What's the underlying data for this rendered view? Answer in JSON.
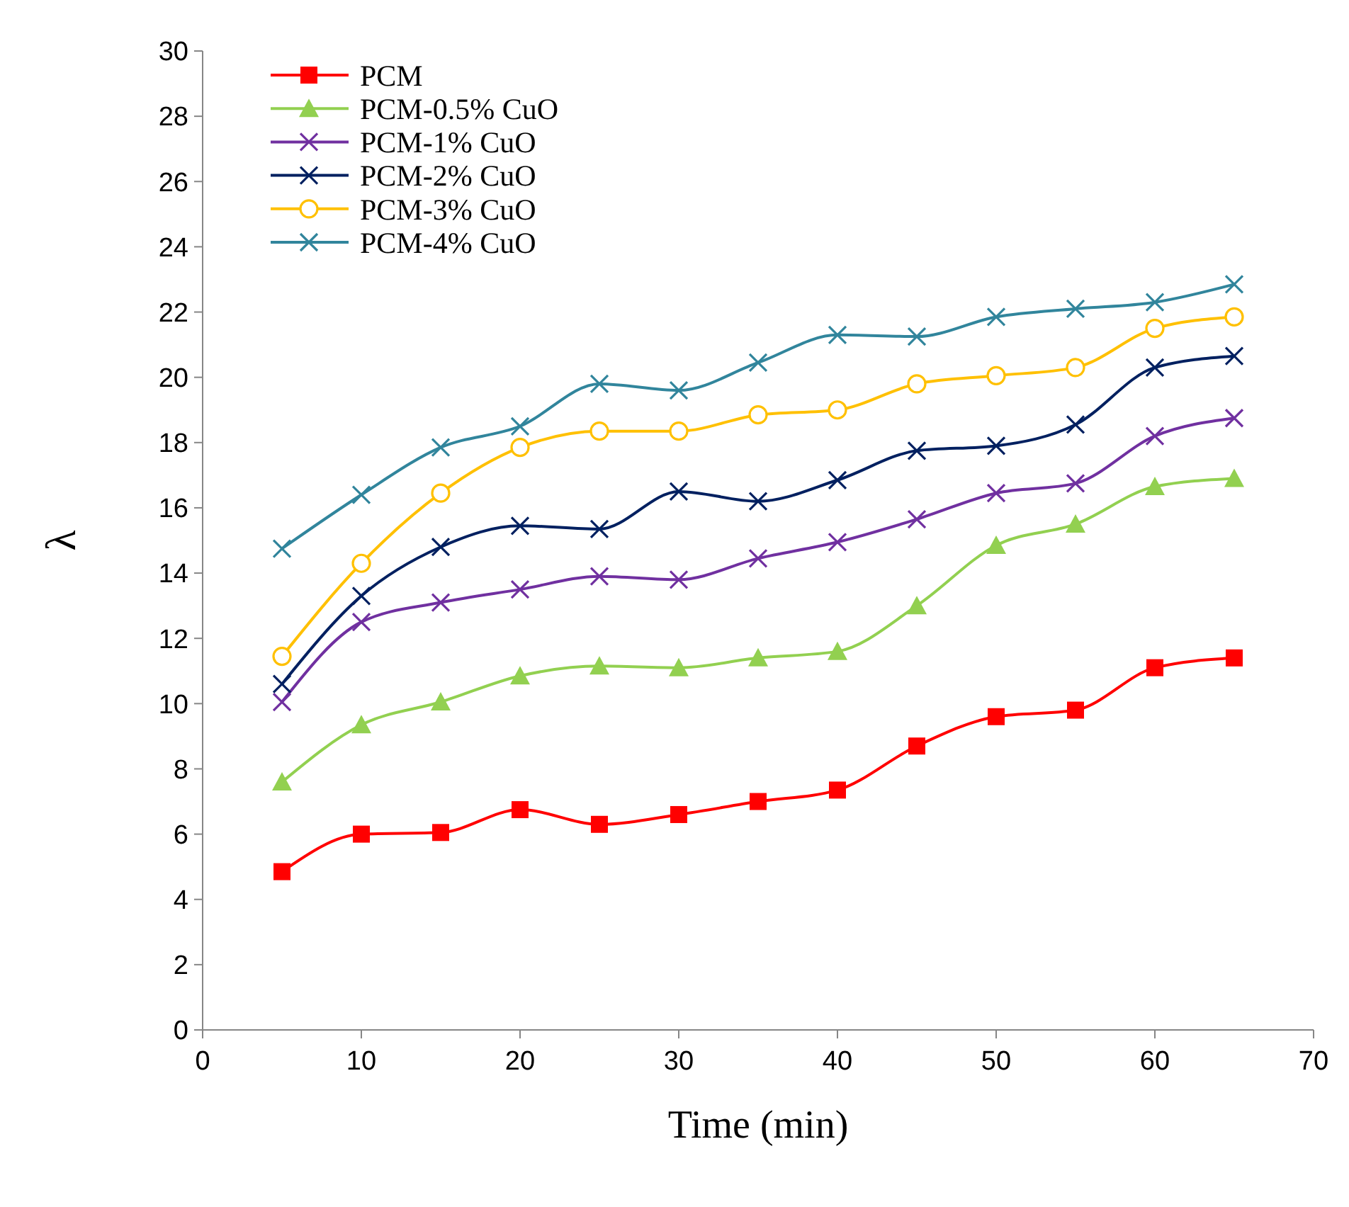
{
  "chart_data": {
    "type": "line",
    "xlabel": "Time (min)",
    "ylabel": "λ",
    "x": [
      5,
      10,
      15,
      20,
      25,
      30,
      35,
      40,
      45,
      50,
      55,
      60,
      65
    ],
    "xlim": [
      0,
      70
    ],
    "xticks": [
      0,
      10,
      20,
      30,
      40,
      50,
      60,
      70
    ],
    "ylim": [
      0,
      30
    ],
    "yticks": [
      0,
      2,
      4,
      6,
      8,
      10,
      12,
      14,
      16,
      18,
      20,
      22,
      24,
      26,
      28,
      30
    ],
    "grid": false,
    "legend": "top left",
    "line_style": "solid",
    "series": [
      {
        "name": "PCM",
        "color": "#ff0000",
        "marker": "square",
        "values": [
          4.85,
          6.0,
          6.05,
          6.75,
          6.3,
          6.6,
          7.0,
          7.35,
          8.7,
          9.6,
          9.8,
          11.1,
          11.4
        ]
      },
      {
        "name": "PCM-0.5% CuO",
        "color": "#92d050",
        "marker": "triangle",
        "values": [
          7.6,
          9.35,
          10.05,
          10.85,
          11.15,
          11.1,
          11.4,
          11.6,
          13.0,
          14.85,
          15.5,
          16.65,
          16.9
        ]
      },
      {
        "name": "PCM-1% CuO",
        "color": "#7030a0",
        "marker": "cross",
        "values": [
          10.05,
          12.5,
          13.1,
          13.5,
          13.9,
          13.8,
          14.45,
          14.95,
          15.65,
          16.45,
          16.75,
          18.2,
          18.75
        ]
      },
      {
        "name": "PCM-2% CuO",
        "color": "#002060",
        "marker": "cross",
        "values": [
          10.6,
          13.3,
          14.8,
          15.45,
          15.35,
          16.5,
          16.2,
          16.85,
          17.75,
          17.9,
          18.55,
          20.3,
          20.65
        ]
      },
      {
        "name": "PCM-3% CuO",
        "color": "#ffc000",
        "marker": "circle",
        "values": [
          11.45,
          14.3,
          16.45,
          17.85,
          18.35,
          18.35,
          18.85,
          19.0,
          19.8,
          20.05,
          20.3,
          21.5,
          21.85
        ]
      },
      {
        "name": "PCM-4% CuO",
        "color": "#31859c",
        "marker": "cross",
        "values": [
          14.75,
          16.4,
          17.85,
          18.5,
          19.8,
          19.6,
          20.45,
          21.3,
          21.25,
          21.85,
          22.1,
          22.3,
          22.85
        ]
      }
    ]
  }
}
